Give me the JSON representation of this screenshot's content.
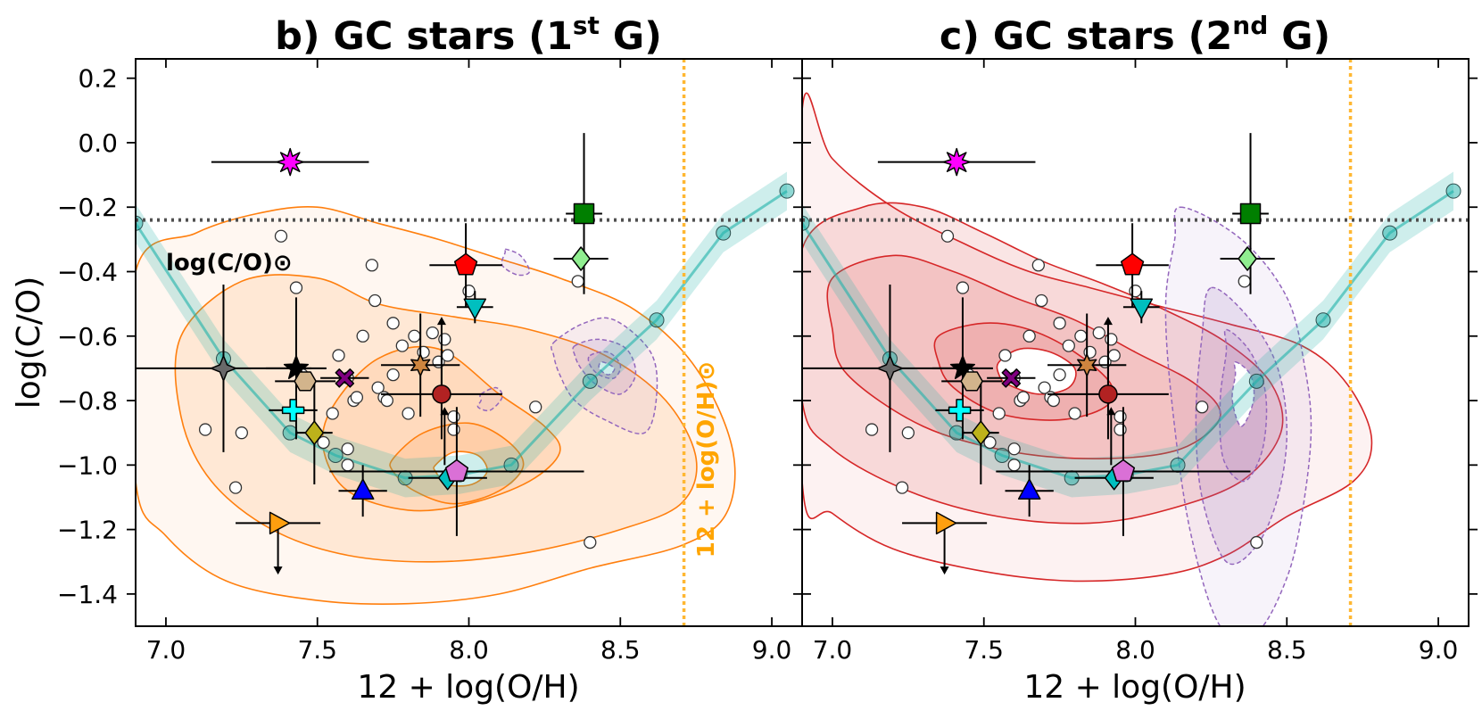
{
  "chart_data": {
    "type": "scatter",
    "xlabel": "12 + log(O/H)",
    "ylabel": "log(C/O)",
    "xlim": [
      6.9,
      9.1
    ],
    "ylim": [
      -1.5,
      0.26
    ],
    "xticks": [
      7.0,
      7.5,
      8.0,
      8.5,
      9.0
    ],
    "xtick_labels": [
      "7.0",
      "7.5",
      "8.0",
      "8.5",
      "9.0"
    ],
    "yticks": [
      0.2,
      0.0,
      -0.2,
      -0.4,
      -0.6,
      -0.8,
      -1.0,
      -1.2,
      -1.4
    ],
    "ytick_labels": [
      "0.2",
      "0.0",
      "−0.2",
      "−0.4",
      "−0.6",
      "−0.8",
      "−1.0",
      "−1.2",
      "−1.4"
    ],
    "solar_CO": -0.24,
    "solar_OH": 8.71,
    "solar_CO_label": "log(C/O)⊙",
    "solar_OH_label": "12 + log(O/H)⊙",
    "panels": [
      {
        "id": "b",
        "title_prefix": "b) GC stars (1",
        "title_sup": "st",
        "title_suffix": " G)",
        "contour_color": "#ff7f0e"
      },
      {
        "id": "c",
        "title_prefix": "c) GC stars (2",
        "title_sup": "nd",
        "title_suffix": " G)",
        "contour_color": "#d62728"
      }
    ],
    "track": {
      "x": [
        6.9,
        7.19,
        7.41,
        7.56,
        7.79,
        7.97,
        8.14,
        8.4,
        8.62,
        8.84,
        9.05
      ],
      "y": [
        -0.25,
        -0.67,
        -0.9,
        -0.97,
        -1.04,
        -1.03,
        -1.0,
        -0.74,
        -0.55,
        -0.28,
        -0.15
      ]
    },
    "open_points": {
      "x": [
        7.13,
        7.25,
        7.38,
        7.43,
        7.45,
        7.52,
        7.55,
        7.57,
        7.6,
        7.6,
        7.6,
        7.62,
        7.63,
        7.65,
        7.68,
        7.69,
        7.7,
        7.72,
        7.73,
        7.75,
        7.75,
        7.78,
        7.8,
        7.82,
        7.85,
        7.88,
        7.9,
        7.92,
        7.93,
        7.95,
        8.0,
        8.22,
        8.36,
        8.4,
        7.95,
        7.23
      ],
      "y": [
        -0.89,
        -0.9,
        -0.29,
        -0.45,
        -0.72,
        -0.93,
        -0.84,
        -0.66,
        -0.73,
        -0.95,
        -1.0,
        -0.8,
        -0.79,
        -0.6,
        -0.38,
        -0.49,
        -0.76,
        -0.79,
        -0.8,
        -0.56,
        -0.72,
        -0.63,
        -0.84,
        -0.6,
        -0.65,
        -0.59,
        -0.68,
        -0.61,
        -0.66,
        -0.85,
        -0.46,
        -0.82,
        -0.43,
        -1.24,
        -0.89,
        -1.07
      ]
    },
    "objects": [
      {
        "x": 7.41,
        "y": -0.06,
        "xerr": [
          0.26,
          0.26
        ],
        "yerr": [
          0,
          0
        ],
        "marker": "star8",
        "color": "#ff00ff"
      },
      {
        "x": 8.38,
        "y": -0.22,
        "xerr": [
          0.06,
          0.06
        ],
        "yerr": [
          0.25,
          0.25
        ],
        "marker": "square",
        "color": "#007f00"
      },
      {
        "x": 8.37,
        "y": -0.36,
        "xerr": [
          0.09,
          0.09
        ],
        "yerr": [
          0,
          0
        ],
        "marker": "diamond",
        "color": "#90ee90"
      },
      {
        "x": 7.99,
        "y": -0.38,
        "xerr": [
          0.12,
          0.12
        ],
        "yerr": [
          0.13,
          0.13
        ],
        "marker": "pentagon",
        "color": "#ff0000"
      },
      {
        "x": 8.02,
        "y": -0.51,
        "xerr": [
          0.06,
          0.06
        ],
        "yerr": [
          0.05,
          0.05
        ],
        "marker": "triangle_down",
        "color": "#00bfbf"
      },
      {
        "x": 7.19,
        "y": -0.7,
        "xerr": [
          0.29,
          0.29
        ],
        "yerr": [
          0.26,
          0.26
        ],
        "marker": "diamond4",
        "color": "#696969"
      },
      {
        "x": 7.43,
        "y": -0.7,
        "xerr": [
          0.1,
          0.1
        ],
        "yerr": [
          0.22,
          0.22
        ],
        "marker": "star5",
        "color": "#000000"
      },
      {
        "x": 7.46,
        "y": -0.74,
        "xerr": [
          0.1,
          0.1
        ],
        "yerr": [
          0,
          0
        ],
        "marker": "hexagon",
        "color": "#d2b48c"
      },
      {
        "x": 7.59,
        "y": -0.73,
        "xerr": [
          0.08,
          0.08
        ],
        "yerr": [
          0,
          0
        ],
        "marker": "X",
        "color": "#800080"
      },
      {
        "x": 7.84,
        "y": -0.69,
        "xerr": [
          0.13,
          0.13
        ],
        "yerr": [
          0.16,
          0.16
        ],
        "marker": "star6",
        "color": "#cd853f"
      },
      {
        "x": 7.91,
        "y": -0.78,
        "xerr": [
          0.2,
          0.2
        ],
        "yerr": [
          0.14,
          0.14
        ],
        "marker": "circle",
        "color": "#b22222"
      },
      {
        "x": 7.42,
        "y": -0.83,
        "xerr": [
          0.08,
          0.08
        ],
        "yerr": [
          0,
          0
        ],
        "marker": "plus",
        "color": "#00ffff"
      },
      {
        "x": 7.49,
        "y": -0.9,
        "xerr": [
          0.06,
          0.06
        ],
        "yerr": [
          0.16,
          0.16
        ],
        "marker": "diamond",
        "color": "#bdb21b"
      },
      {
        "x": 7.65,
        "y": -1.08,
        "xerr": [
          0.08,
          0.08
        ],
        "yerr": [
          0.08,
          0.08
        ],
        "marker": "triangle_up",
        "color": "#0000ff"
      },
      {
        "x": 7.93,
        "y": -1.04,
        "xerr": [
          0.13,
          0.13
        ],
        "yerr": [
          0,
          0
        ],
        "marker": "diamond",
        "color": "#00bfbf"
      },
      {
        "x": 7.96,
        "y": -1.02,
        "xerr": [
          0.42,
          0.42
        ],
        "yerr": [
          0.2,
          0.2
        ],
        "marker": "pentagon",
        "color": "#da70d6"
      },
      {
        "x": 7.37,
        "y": -1.18,
        "xerr": [
          0.14,
          0.14
        ],
        "yerr": [
          0,
          0
        ],
        "marker": "triangle_right",
        "color": "#ff9f0f"
      }
    ],
    "arrows_up": [
      {
        "x": 7.91,
        "y": -0.78,
        "len": 0.24
      },
      {
        "x": 7.92,
        "y": -1.0,
        "len": 0.18
      }
    ],
    "arrows_down": [
      {
        "x": 7.37,
        "y": -1.18,
        "len": 0.16
      }
    ],
    "contours_panel_b": [
      {
        "level": 0,
        "x": [
          6.9,
          7.1,
          7.3,
          7.5,
          7.7,
          7.9,
          8.1,
          8.3,
          8.55,
          8.75,
          8.87,
          8.85,
          8.7,
          8.4,
          8.1,
          7.8,
          7.5,
          7.2,
          7.0,
          6.9
        ],
        "y": [
          -0.4,
          -0.28,
          -0.22,
          -0.2,
          -0.25,
          -0.3,
          -0.36,
          -0.42,
          -0.52,
          -0.7,
          -0.95,
          -1.15,
          -1.25,
          -1.32,
          -1.4,
          -1.43,
          -1.42,
          -1.36,
          -1.22,
          -1.05
        ]
      },
      {
        "level": 1,
        "x": [
          7.05,
          7.25,
          7.5,
          7.7,
          7.95,
          8.2,
          8.45,
          8.65,
          8.75,
          8.7,
          8.5,
          8.2,
          7.9,
          7.6,
          7.35,
          7.15,
          7.05
        ],
        "y": [
          -0.6,
          -0.43,
          -0.42,
          -0.5,
          -0.54,
          -0.58,
          -0.66,
          -0.8,
          -0.98,
          -1.12,
          -1.2,
          -1.27,
          -1.3,
          -1.28,
          -1.2,
          -1.05,
          -0.85
        ]
      },
      {
        "level": 2,
        "x": [
          7.55,
          7.7,
          7.9,
          8.1,
          8.25,
          8.3,
          8.2,
          8.0,
          7.8,
          7.6,
          7.52
        ],
        "y": [
          -0.82,
          -0.67,
          -0.64,
          -0.78,
          -0.88,
          -0.96,
          -1.05,
          -1.12,
          -1.14,
          -1.08,
          -0.95
        ]
      },
      {
        "level": 3,
        "x": [
          7.75,
          7.85,
          8.0,
          8.12,
          8.18,
          8.1,
          7.95,
          7.82,
          7.75
        ],
        "y": [
          -0.98,
          -0.9,
          -0.87,
          -0.92,
          -1.0,
          -1.08,
          -1.12,
          -1.08,
          -1.02
        ]
      },
      {
        "level": 4,
        "x": [
          7.89,
          7.95,
          8.03,
          8.06,
          8.01,
          7.93,
          7.89
        ],
        "y": [
          -1.0,
          -0.96,
          -0.97,
          -1.02,
          -1.06,
          -1.06,
          -1.02
        ]
      }
    ],
    "contours_panel_c": [
      {
        "level": 0,
        "x": [
          6.9,
          7.0,
          7.2,
          7.45,
          7.65,
          7.85,
          8.05,
          8.3,
          8.55,
          8.7,
          8.78,
          8.72,
          8.5,
          8.3,
          8.1,
          7.8,
          7.5,
          7.2,
          7.0,
          6.9
        ],
        "y": [
          0.1,
          -0.05,
          -0.2,
          -0.32,
          -0.4,
          -0.45,
          -0.5,
          -0.56,
          -0.63,
          -0.75,
          -0.92,
          -1.05,
          -1.16,
          -1.28,
          -1.34,
          -1.36,
          -1.33,
          -1.26,
          -1.15,
          -1.05
        ]
      },
      {
        "level": 1,
        "x": [
          6.9,
          7.1,
          7.3,
          7.5,
          7.7,
          7.9,
          8.1,
          8.3,
          8.45,
          8.48,
          8.35,
          8.1,
          7.85,
          7.55,
          7.25,
          7.0,
          6.9
        ],
        "y": [
          -0.33,
          -0.2,
          -0.2,
          -0.28,
          -0.37,
          -0.44,
          -0.52,
          -0.62,
          -0.75,
          -0.9,
          -1.05,
          -1.14,
          -1.18,
          -1.16,
          -1.08,
          -0.95,
          -0.8
        ]
      },
      {
        "level": 2,
        "x": [
          7.0,
          7.2,
          7.4,
          7.6,
          7.8,
          8.0,
          8.2,
          8.28,
          8.15,
          7.9,
          7.6,
          7.3,
          7.05,
          7.0
        ],
        "y": [
          -0.42,
          -0.35,
          -0.4,
          -0.48,
          -0.55,
          -0.65,
          -0.75,
          -0.85,
          -0.95,
          -0.98,
          -0.96,
          -0.88,
          -0.72,
          -0.58
        ]
      },
      {
        "level": 3,
        "x": [
          7.35,
          7.5,
          7.65,
          7.8,
          7.92,
          7.9,
          7.75,
          7.55,
          7.4,
          7.35
        ],
        "y": [
          -0.6,
          -0.56,
          -0.58,
          -0.65,
          -0.75,
          -0.82,
          -0.86,
          -0.84,
          -0.76,
          -0.68
        ]
      },
      {
        "level": 4,
        "x": [
          7.55,
          7.62,
          7.72,
          7.8,
          7.78,
          7.68,
          7.58,
          7.55
        ],
        "y": [
          -0.68,
          -0.64,
          -0.65,
          -0.7,
          -0.76,
          -0.78,
          -0.75,
          -0.72
        ]
      }
    ],
    "purple_b": [
      {
        "level": 0,
        "x": [
          8.28,
          8.38,
          8.48,
          8.6,
          8.62,
          8.58,
          8.45,
          8.35,
          8.3,
          8.28
        ],
        "y": [
          -0.62,
          -0.56,
          -0.55,
          -0.65,
          -0.78,
          -0.9,
          -0.86,
          -0.8,
          -0.72,
          -0.66
        ]
      },
      {
        "level": 1,
        "x": [
          8.35,
          8.43,
          8.52,
          8.55,
          8.5,
          8.42,
          8.37,
          8.35
        ],
        "y": [
          -0.63,
          -0.61,
          -0.64,
          -0.72,
          -0.78,
          -0.75,
          -0.7,
          -0.66
        ]
      },
      {
        "level": 2,
        "x": [
          8.4,
          8.46,
          8.5,
          8.48,
          8.43,
          8.4
        ],
        "y": [
          -0.66,
          -0.65,
          -0.69,
          -0.73,
          -0.72,
          -0.69
        ]
      },
      {
        "level": 3,
        "x": [
          8.44,
          8.48,
          8.46,
          8.43
        ],
        "y": [
          -0.68,
          -0.7,
          -0.72,
          -0.7
        ]
      },
      {
        "level": 0,
        "x": [
          8.12,
          8.17,
          8.2,
          8.16,
          8.11,
          8.12
        ],
        "y": [
          -0.33,
          -0.35,
          -0.4,
          -0.41,
          -0.38,
          -0.34
        ]
      },
      {
        "level": 0,
        "x": [
          8.04,
          8.09,
          8.11,
          8.07,
          8.03,
          8.04
        ],
        "y": [
          -0.78,
          -0.76,
          -0.79,
          -0.83,
          -0.82,
          -0.8
        ]
      }
    ],
    "purple_c": [
      {
        "level": 0,
        "x": [
          8.15,
          8.35,
          8.5,
          8.56,
          8.58,
          8.55,
          8.5,
          8.4,
          8.28,
          8.18,
          8.12,
          8.1,
          8.13
        ],
        "y": [
          -0.2,
          -0.3,
          -0.48,
          -0.7,
          -0.9,
          -1.15,
          -1.35,
          -1.52,
          -1.5,
          -1.2,
          -0.8,
          -0.5,
          -0.3
        ]
      },
      {
        "level": 1,
        "x": [
          8.25,
          8.38,
          8.47,
          8.5,
          8.47,
          8.4,
          8.3,
          8.22,
          8.2,
          8.22
        ],
        "y": [
          -0.45,
          -0.55,
          -0.7,
          -0.9,
          -1.1,
          -1.25,
          -1.3,
          -1.1,
          -0.85,
          -0.6
        ]
      },
      {
        "level": 2,
        "x": [
          8.3,
          8.38,
          8.43,
          8.42,
          8.36,
          8.29,
          8.28,
          8.3
        ],
        "y": [
          -0.58,
          -0.65,
          -0.78,
          -0.95,
          -1.05,
          -0.98,
          -0.8,
          -0.65
        ]
      },
      {
        "level": 3,
        "x": [
          8.33,
          8.38,
          8.39,
          8.35,
          8.32,
          8.33
        ],
        "y": [
          -0.68,
          -0.72,
          -0.8,
          -0.88,
          -0.8,
          -0.72
        ]
      }
    ]
  }
}
